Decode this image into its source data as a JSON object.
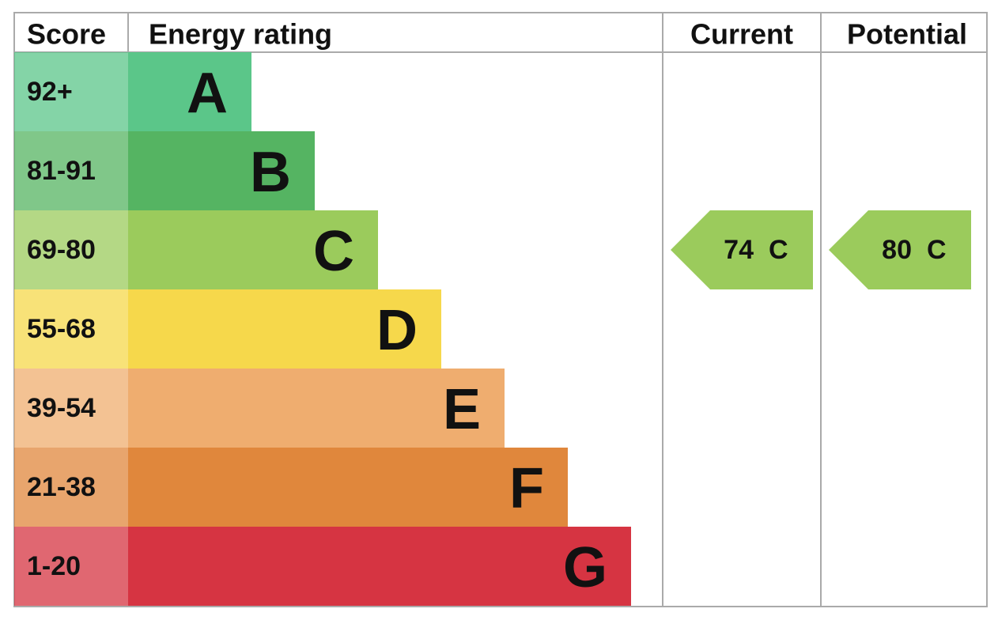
{
  "header": {
    "score": "Score",
    "rating": "Energy rating",
    "current": "Current",
    "potential": "Potential"
  },
  "bands": [
    {
      "score": "92+",
      "letter": "A",
      "color": "#5bc689"
    },
    {
      "score": "81-91",
      "letter": "B",
      "color": "#55b462"
    },
    {
      "score": "69-80",
      "letter": "C",
      "color": "#9bcb5c"
    },
    {
      "score": "55-68",
      "letter": "D",
      "color": "#f6d84b"
    },
    {
      "score": "39-54",
      "letter": "E",
      "color": "#efad6f"
    },
    {
      "score": "21-38",
      "letter": "F",
      "color": "#e0873c"
    },
    {
      "score": "1-20",
      "letter": "G",
      "color": "#d63442"
    }
  ],
  "current": {
    "value": 74,
    "letter": "C"
  },
  "potential": {
    "value": 80,
    "letter": "C"
  }
}
